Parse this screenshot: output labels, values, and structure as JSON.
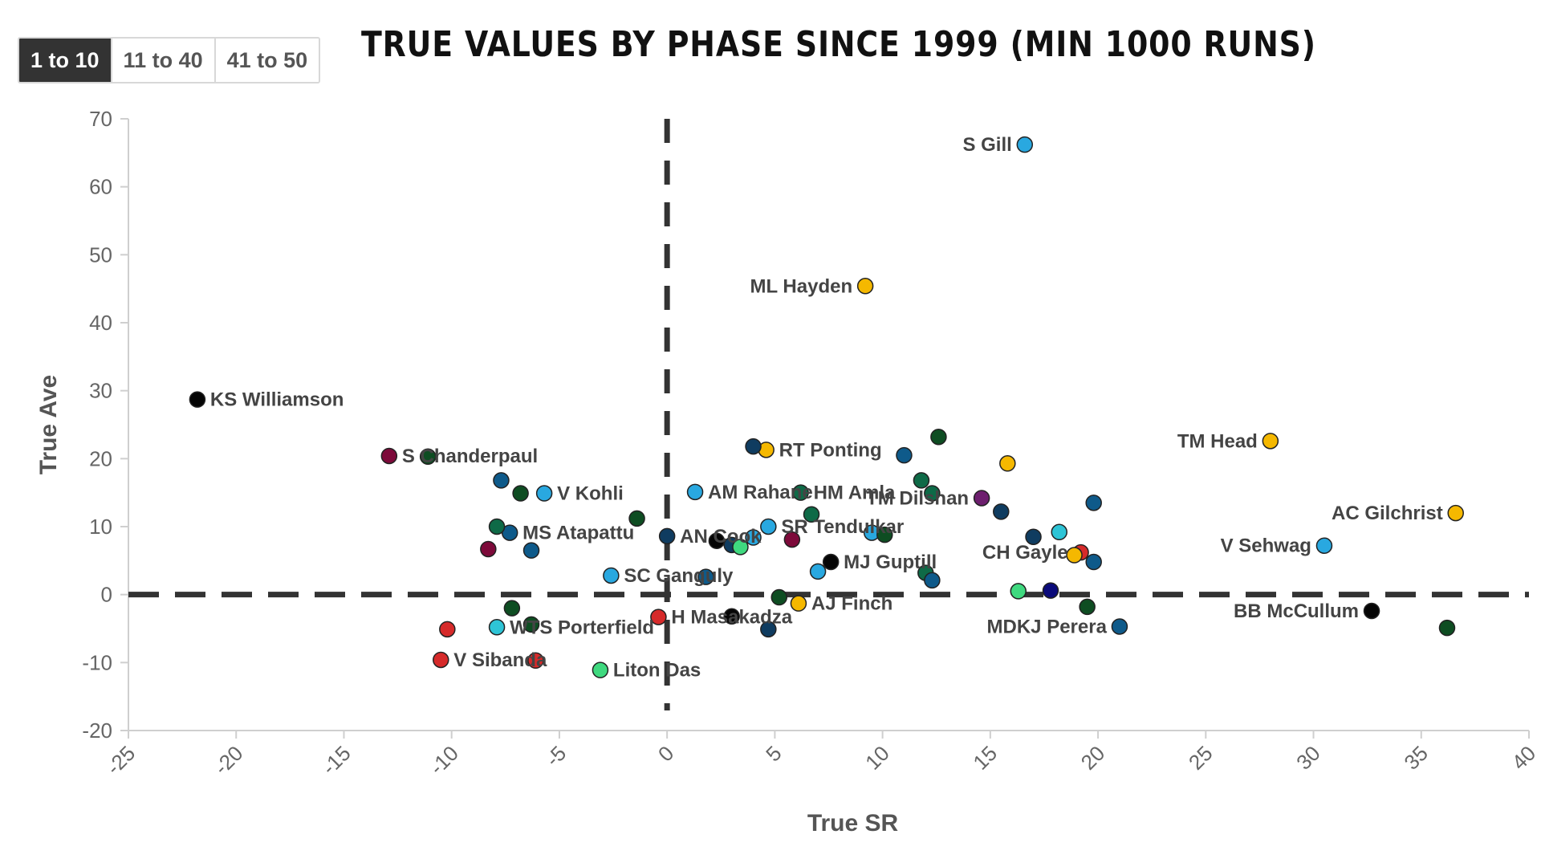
{
  "tabs": [
    {
      "label": "1 to 10",
      "active": true
    },
    {
      "label": "11 to 40",
      "active": false
    },
    {
      "label": "41 to 50",
      "active": false
    }
  ],
  "chart_data": {
    "type": "scatter",
    "title": "TRUE VALUES BY PHASE SINCE 1999 (MIN 1000 RUNS)",
    "xlabel": "True SR",
    "ylabel": "True Ave",
    "xlim": [
      -25,
      40
    ],
    "ylim": [
      -20,
      70
    ],
    "x_ticks": [
      -25,
      -20,
      -15,
      -10,
      -5,
      0,
      5,
      10,
      15,
      20,
      25,
      30,
      35,
      40
    ],
    "y_ticks": [
      -20,
      -10,
      0,
      10,
      20,
      30,
      40,
      50,
      60,
      70
    ],
    "reference_lines": {
      "x": 0,
      "y": 0,
      "style": "dashed"
    },
    "points": [
      {
        "x": 16.6,
        "y": 66.2,
        "label": "S Gill",
        "color": "#29a8e0"
      },
      {
        "x": 9.2,
        "y": 45.4,
        "label": "ML Hayden",
        "color": "#f5b800"
      },
      {
        "x": -21.8,
        "y": 28.7,
        "label": "KS Williamson",
        "color": "#050505"
      },
      {
        "x": 28.0,
        "y": 22.6,
        "label": "TM Head",
        "color": "#f5b800"
      },
      {
        "x": -12.9,
        "y": 20.4,
        "label": "S Chanderpaul",
        "color": "#7d0a3a"
      },
      {
        "x": 4.6,
        "y": 21.3,
        "label": "RT Ponting",
        "color": "#f5b800"
      },
      {
        "x": -5.7,
        "y": 14.9,
        "label": "V Kohli",
        "color": "#29a8e0"
      },
      {
        "x": 1.3,
        "y": 15.1,
        "label": "AM Rahane",
        "color": "#29a8e0"
      },
      {
        "x": 6.2,
        "y": 15.0,
        "label": "HM Amla",
        "color": "#0e6a47"
      },
      {
        "x": 14.6,
        "y": 14.2,
        "label": "TM Dilshan",
        "color": "#6d1f6e"
      },
      {
        "x": 36.6,
        "y": 12.0,
        "label": "AC Gilchrist",
        "color": "#f5b800"
      },
      {
        "x": 4.7,
        "y": 10.0,
        "label": "SR Tendulkar",
        "color": "#29a8e0"
      },
      {
        "x": -7.3,
        "y": 9.1,
        "label": "MS Atapattu",
        "color": "#0e5a8a"
      },
      {
        "x": 0.0,
        "y": 8.6,
        "label": "AN Cook",
        "color": "#0f3c60"
      },
      {
        "x": 30.5,
        "y": 7.2,
        "label": "V Sehwag",
        "color": "#29a8e0"
      },
      {
        "x": 19.2,
        "y": 6.2,
        "label": "CH Gayle",
        "color": "#d62a2a"
      },
      {
        "x": 7.6,
        "y": 4.8,
        "label": "MJ Guptill",
        "color": "#050505"
      },
      {
        "x": -2.6,
        "y": 2.8,
        "label": "SC Ganguly",
        "color": "#29a8e0"
      },
      {
        "x": 6.1,
        "y": -1.3,
        "label": "AJ Finch",
        "color": "#f5b800"
      },
      {
        "x": 32.7,
        "y": -2.4,
        "label": "BB McCullum",
        "color": "#050505"
      },
      {
        "x": -0.4,
        "y": -3.3,
        "label": "H Masakadza",
        "color": "#d62a2a"
      },
      {
        "x": -7.9,
        "y": -4.8,
        "label": "WTS Porterfield",
        "color": "#2ec4d6"
      },
      {
        "x": 21.0,
        "y": -4.7,
        "label": "MDKJ Perera",
        "color": "#0e5a8a"
      },
      {
        "x": -10.5,
        "y": -9.6,
        "label": "V Sibanda",
        "color": "#d62a2a"
      },
      {
        "x": -3.1,
        "y": -11.1,
        "label": "Liton Das",
        "color": "#3fd97f"
      },
      {
        "x": -11.1,
        "y": 20.3,
        "label": "",
        "color": "#0e4d22"
      },
      {
        "x": -7.7,
        "y": 16.8,
        "label": "",
        "color": "#0e5a8a"
      },
      {
        "x": -6.8,
        "y": 14.9,
        "label": "",
        "color": "#0e4d22"
      },
      {
        "x": -7.9,
        "y": 10.0,
        "label": "",
        "color": "#0e6a47"
      },
      {
        "x": -8.3,
        "y": 6.7,
        "label": "",
        "color": "#7d0a3a"
      },
      {
        "x": -6.3,
        "y": 6.5,
        "label": "",
        "color": "#0e5a8a"
      },
      {
        "x": -1.4,
        "y": 11.2,
        "label": "",
        "color": "#0e4d22"
      },
      {
        "x": 4.0,
        "y": 21.8,
        "label": "",
        "color": "#0f3c60"
      },
      {
        "x": 11.0,
        "y": 20.5,
        "label": "",
        "color": "#0e5a8a"
      },
      {
        "x": 12.6,
        "y": 23.2,
        "label": "",
        "color": "#0e4d22"
      },
      {
        "x": 15.8,
        "y": 19.3,
        "label": "",
        "color": "#f5b800"
      },
      {
        "x": 11.8,
        "y": 16.8,
        "label": "",
        "color": "#0e6a47"
      },
      {
        "x": 12.3,
        "y": 14.9,
        "label": "",
        "color": "#0e6a47"
      },
      {
        "x": 19.8,
        "y": 13.5,
        "label": "",
        "color": "#0e5a8a"
      },
      {
        "x": 15.5,
        "y": 12.2,
        "label": "",
        "color": "#0f3c60"
      },
      {
        "x": 6.7,
        "y": 11.8,
        "label": "",
        "color": "#0e6a47"
      },
      {
        "x": 9.5,
        "y": 9.1,
        "label": "",
        "color": "#29a8e0"
      },
      {
        "x": 10.1,
        "y": 8.8,
        "label": "",
        "color": "#0e4d22"
      },
      {
        "x": 5.8,
        "y": 8.1,
        "label": "",
        "color": "#7d0a3a"
      },
      {
        "x": 2.3,
        "y": 7.9,
        "label": "",
        "color": "#050505"
      },
      {
        "x": 4.0,
        "y": 8.4,
        "label": "",
        "color": "#29a8e0"
      },
      {
        "x": 3.0,
        "y": 7.3,
        "label": "",
        "color": "#0f3c60"
      },
      {
        "x": 3.4,
        "y": 7.0,
        "label": "",
        "color": "#3fd97f"
      },
      {
        "x": 17.0,
        "y": 8.5,
        "label": "",
        "color": "#0f3c60"
      },
      {
        "x": 18.2,
        "y": 9.2,
        "label": "",
        "color": "#2ec4d6"
      },
      {
        "x": 18.9,
        "y": 5.8,
        "label": "",
        "color": "#f5b800"
      },
      {
        "x": 19.8,
        "y": 4.8,
        "label": "",
        "color": "#0e5a8a"
      },
      {
        "x": 7.0,
        "y": 3.4,
        "label": "",
        "color": "#29a8e0"
      },
      {
        "x": 1.8,
        "y": 2.6,
        "label": "",
        "color": "#0e5a8a"
      },
      {
        "x": 12.0,
        "y": 3.2,
        "label": "",
        "color": "#0e6a47"
      },
      {
        "x": 12.3,
        "y": 2.1,
        "label": "",
        "color": "#0e5a8a"
      },
      {
        "x": 16.3,
        "y": 0.5,
        "label": "",
        "color": "#3fd97f"
      },
      {
        "x": 17.8,
        "y": 0.6,
        "label": "",
        "color": "#0a0a7a"
      },
      {
        "x": 5.2,
        "y": -0.4,
        "label": "",
        "color": "#0e4d22"
      },
      {
        "x": 19.5,
        "y": -1.8,
        "label": "",
        "color": "#0e4d22"
      },
      {
        "x": -7.2,
        "y": -2.0,
        "label": "",
        "color": "#0e4d22"
      },
      {
        "x": 3.0,
        "y": -3.2,
        "label": "",
        "color": "#050505"
      },
      {
        "x": 4.7,
        "y": -5.1,
        "label": "",
        "color": "#0f3c60"
      },
      {
        "x": -6.3,
        "y": -4.4,
        "label": "",
        "color": "#0e4d22"
      },
      {
        "x": -10.2,
        "y": -5.1,
        "label": "",
        "color": "#d62a2a"
      },
      {
        "x": -6.1,
        "y": -9.7,
        "label": "",
        "color": "#d62a2a"
      },
      {
        "x": 36.2,
        "y": -4.9,
        "label": "",
        "color": "#0e4d22"
      }
    ]
  }
}
